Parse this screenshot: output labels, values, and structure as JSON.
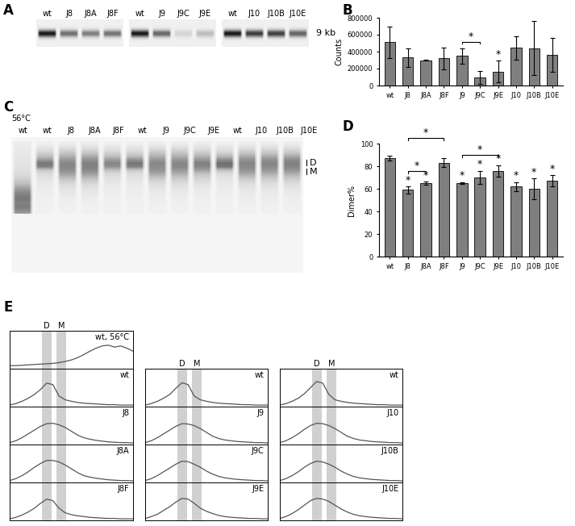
{
  "chart_data": [
    {
      "type": "gel",
      "label": "A",
      "groups": [
        [
          "wt",
          "J8",
          "J8A",
          "J8F"
        ],
        [
          "wt",
          "J9",
          "J9C",
          "J9E"
        ],
        [
          "wt",
          "J10",
          "J10B",
          "J10E"
        ]
      ],
      "band_label": "9 kb"
    },
    {
      "type": "bar",
      "label": "B",
      "ylabel": "Counts",
      "categories": [
        "wt",
        "J8",
        "J8A",
        "J8F",
        "J9",
        "J9C",
        "J9E",
        "J10",
        "J10B",
        "J10E"
      ],
      "values": [
        510000,
        330000,
        300000,
        320000,
        350000,
        95000,
        165000,
        445000,
        440000,
        360000
      ],
      "errors": [
        190000,
        110000,
        5000,
        125000,
        90000,
        80000,
        130000,
        140000,
        320000,
        200000
      ],
      "color": "#7f7f7f",
      "ylim": [
        0,
        800000
      ],
      "yticks": [
        0,
        200000,
        400000,
        600000,
        800000
      ],
      "annotations": [
        {
          "category": "J9E",
          "text": "*"
        }
      ],
      "comparisons": [
        {
          "from": "J9",
          "to": "J9C",
          "text": "*"
        }
      ]
    },
    {
      "type": "gel",
      "label": "C",
      "condition": "56°C",
      "lanes": [
        "wt",
        "wt",
        "J8",
        "J8A",
        "J8F",
        "wt",
        "J9",
        "J9C",
        "J9E",
        "wt",
        "J10",
        "J10B",
        "J10E"
      ],
      "markers": [
        "D",
        "M"
      ]
    },
    {
      "type": "bar",
      "label": "D",
      "ylabel": "Dimer%",
      "categories": [
        "wt",
        "J8",
        "J8A",
        "J8F",
        "J9",
        "J9C",
        "J9E",
        "J10",
        "J10B",
        "J10E"
      ],
      "values": [
        87,
        59,
        65,
        83,
        65,
        70,
        76,
        62,
        60,
        67
      ],
      "errors": [
        2,
        3,
        1.5,
        4,
        1,
        6,
        5,
        4,
        9,
        5
      ],
      "color": "#7f7f7f",
      "ylim": [
        0,
        100
      ],
      "yticks": [
        0,
        20,
        40,
        60,
        80,
        100
      ],
      "annotations": [
        {
          "category": "J8",
          "text": "*"
        },
        {
          "category": "J8A",
          "text": "*"
        },
        {
          "category": "J9",
          "text": "*"
        },
        {
          "category": "J9C",
          "text": "*"
        },
        {
          "category": "J9E",
          "text": "*"
        },
        {
          "category": "J10",
          "text": "*"
        },
        {
          "category": "J10B",
          "text": "*"
        },
        {
          "category": "J10E",
          "text": "*"
        }
      ],
      "comparisons": [
        {
          "from": "J8",
          "to": "J8A",
          "text": "*"
        },
        {
          "from": "J8",
          "to": "J8F",
          "text": "*"
        },
        {
          "from": "J9",
          "to": "J9E",
          "text": "*"
        }
      ]
    },
    {
      "type": "line",
      "label": "E",
      "tick_labels": false,
      "color": "#555555",
      "x": [
        0,
        1,
        2,
        3,
        4,
        5,
        6,
        7,
        8,
        9,
        10,
        11,
        12,
        13,
        14,
        15,
        16,
        17,
        18,
        19,
        20
      ],
      "xlim": [
        0,
        20
      ],
      "ylim": [
        0,
        100
      ],
      "bands": [
        {
          "label": "D",
          "range": [
            5.2,
            6.8
          ]
        },
        {
          "label": "M",
          "range": [
            7.6,
            9.2
          ]
        }
      ],
      "groups": [
        [
          {
            "name": "wt, 56°C",
            "values": [
              8,
              8,
              9,
              10,
              11,
              12,
              13,
              14,
              16,
              19,
              23,
              29,
              37,
              46,
              54,
              60,
              62,
              57,
              60,
              54,
              46
            ]
          },
          {
            "name": "wt",
            "values": [
              4,
              8,
              14,
              22,
              32,
              45,
              62,
              58,
              28,
              18,
              14,
              11,
              9,
              8,
              7,
              6,
              5,
              5,
              4,
              4,
              4
            ]
          },
          {
            "name": "J8",
            "values": [
              5,
              10,
              18,
              28,
              38,
              48,
              55,
              56,
              52,
              45,
              35,
              25,
              18,
              14,
              11,
              9,
              7,
              6,
              5,
              5,
              4
            ]
          },
          {
            "name": "J8A",
            "values": [
              5,
              10,
              18,
              28,
              40,
              50,
              58,
              58,
              54,
              46,
              36,
              26,
              18,
              14,
              11,
              9,
              7,
              6,
              5,
              5,
              4
            ]
          },
          {
            "name": "J8F",
            "values": [
              4,
              8,
              14,
              22,
              32,
              45,
              56,
              52,
              32,
              20,
              15,
              12,
              10,
              8,
              7,
              6,
              5,
              5,
              4,
              4,
              4
            ]
          }
        ],
        [
          {
            "name": "wt",
            "values": [
              4,
              8,
              14,
              22,
              32,
              48,
              63,
              58,
              28,
              18,
              14,
              11,
              9,
              8,
              7,
              6,
              5,
              5,
              4,
              4,
              4
            ]
          },
          {
            "name": "J9",
            "values": [
              5,
              10,
              18,
              28,
              38,
              48,
              55,
              54,
              50,
              42,
              32,
              22,
              16,
              12,
              10,
              8,
              7,
              6,
              5,
              5,
              4
            ]
          },
          {
            "name": "J9C",
            "values": [
              5,
              10,
              18,
              28,
              38,
              48,
              56,
              55,
              48,
              40,
              30,
              22,
              16,
              12,
              10,
              8,
              7,
              6,
              5,
              5,
              4
            ]
          },
          {
            "name": "J9E",
            "values": [
              5,
              10,
              16,
              26,
              36,
              48,
              58,
              56,
              45,
              32,
              24,
              18,
              13,
              10,
              8,
              7,
              6,
              5,
              5,
              4,
              4
            ]
          }
        ],
        [
          {
            "name": "wt",
            "values": [
              4,
              8,
              14,
              22,
              34,
              50,
              66,
              62,
              32,
              18,
              14,
              11,
              9,
              8,
              7,
              6,
              5,
              5,
              4,
              4,
              4
            ]
          },
          {
            "name": "J10",
            "values": [
              5,
              10,
              18,
              28,
              40,
              50,
              56,
              55,
              50,
              42,
              32,
              22,
              16,
              12,
              10,
              8,
              7,
              6,
              5,
              5,
              4
            ]
          },
          {
            "name": "J10B",
            "values": [
              5,
              10,
              18,
              28,
              40,
              50,
              56,
              54,
              48,
              40,
              30,
              22,
              16,
              12,
              10,
              8,
              7,
              6,
              5,
              5,
              4
            ]
          },
          {
            "name": "J10E",
            "values": [
              5,
              10,
              18,
              28,
              40,
              52,
              58,
              56,
              50,
              40,
              30,
              22,
              16,
              12,
              10,
              8,
              7,
              6,
              5,
              5,
              4
            ]
          }
        ]
      ]
    }
  ]
}
